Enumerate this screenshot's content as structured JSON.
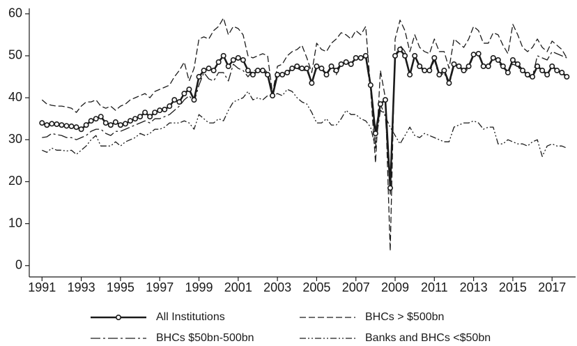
{
  "chart_data": {
    "type": "line",
    "x": [
      1991,
      1991.25,
      1991.5,
      1991.75,
      1992,
      1992.25,
      1992.5,
      1992.75,
      1993,
      1993.25,
      1993.5,
      1993.75,
      1994,
      1994.25,
      1994.5,
      1994.75,
      1995,
      1995.25,
      1995.5,
      1995.75,
      1996,
      1996.25,
      1996.5,
      1996.75,
      1997,
      1997.25,
      1997.5,
      1997.75,
      1998,
      1998.25,
      1998.5,
      1998.75,
      1999,
      1999.25,
      1999.5,
      1999.75,
      2000,
      2000.25,
      2000.5,
      2000.75,
      2001,
      2001.25,
      2001.5,
      2001.75,
      2002,
      2002.25,
      2002.5,
      2002.75,
      2003,
      2003.25,
      2003.5,
      2003.75,
      2004,
      2004.25,
      2004.5,
      2004.75,
      2005,
      2005.25,
      2005.5,
      2005.75,
      2006,
      2006.25,
      2006.5,
      2006.75,
      2007,
      2007.25,
      2007.5,
      2007.75,
      2008,
      2008.25,
      2008.5,
      2008.75,
      2009,
      2009.25,
      2009.5,
      2009.75,
      2010,
      2010.25,
      2010.5,
      2010.75,
      2011,
      2011.25,
      2011.5,
      2011.75,
      2012,
      2012.25,
      2012.5,
      2012.75,
      2013,
      2013.25,
      2013.5,
      2013.75,
      2014,
      2014.25,
      2014.5,
      2014.75,
      2015,
      2015.25,
      2015.5,
      2015.75,
      2016,
      2016.25,
      2016.5,
      2016.75,
      2017,
      2017.25,
      2017.5,
      2017.75
    ],
    "series": [
      {
        "name": "All Institutions",
        "color": "#1a1a1a",
        "dash": "solid",
        "width": 2.6,
        "markers": true,
        "values": [
          34,
          33.5,
          33.8,
          33.7,
          33.5,
          33.3,
          33.2,
          33,
          32.5,
          33.5,
          34.5,
          35,
          35.5,
          34,
          33.5,
          34.2,
          33.5,
          33.8,
          34.5,
          35,
          35.5,
          36.5,
          35.5,
          36.5,
          37,
          37.2,
          38,
          39.5,
          39,
          41,
          42,
          39.5,
          45,
          46.5,
          47,
          46.5,
          48.5,
          50,
          47.5,
          49,
          49.5,
          49,
          46.5,
          45.5,
          46.5,
          46.5,
          45.5,
          40.5,
          45.5,
          45.5,
          46,
          47,
          47.5,
          47,
          47,
          43.5,
          47.5,
          47,
          45.5,
          47.5,
          46.5,
          48,
          48.5,
          48,
          49.5,
          49.5,
          50,
          43,
          31.5,
          38.5,
          39.5,
          18.5,
          50,
          51.5,
          50,
          45.5,
          50,
          47.5,
          46.5,
          46.5,
          49.5,
          45.5,
          46.5,
          43.5,
          48,
          47.5,
          46.5,
          47.5,
          50.3,
          50.5,
          47.5,
          47.5,
          49.5,
          49,
          47.5,
          46,
          49,
          48,
          46.5,
          45.5,
          45,
          47.5,
          46.5,
          45.5,
          47.5,
          46.5,
          46,
          45
        ]
      },
      {
        "name": "BHCs > $500bn",
        "color": "#1a1a1a",
        "dash": "dashed",
        "width": 1.3,
        "markers": false,
        "values": [
          39.5,
          38.5,
          38.2,
          38,
          38,
          37.8,
          37.5,
          36.5,
          38,
          39,
          39,
          39.5,
          38,
          37.5,
          38,
          37,
          38,
          38.5,
          39.5,
          40,
          40.5,
          41,
          40,
          41.5,
          42,
          42.5,
          43,
          45,
          46.5,
          48.5,
          44,
          47,
          54,
          54.5,
          54,
          56,
          57,
          59,
          55,
          57,
          56.5,
          55,
          50,
          49.5,
          50,
          50.5,
          50,
          41,
          47.5,
          48,
          50,
          51,
          51.5,
          52.5,
          49.5,
          46,
          53,
          51.5,
          51,
          53,
          54,
          55.5,
          55,
          54,
          56,
          55,
          57,
          42,
          24.5,
          46.5,
          40,
          3.5,
          54,
          58.5,
          56,
          51,
          55,
          52,
          51,
          50.5,
          54,
          51,
          51,
          47,
          54,
          53,
          52,
          54,
          57,
          56,
          53,
          53,
          55.5,
          55,
          52.5,
          50.5,
          57.5,
          55,
          52,
          51,
          52,
          54,
          52,
          51,
          53.5,
          52.5,
          51.5,
          49.5
        ]
      },
      {
        "name": "BHCs $50bn-500bn",
        "color": "#1a1a1a",
        "dash": "dashdot",
        "width": 1.3,
        "markers": false,
        "values": [
          30.5,
          30.7,
          31.5,
          31.2,
          31,
          30.5,
          30.5,
          30,
          30.5,
          31,
          32,
          32.5,
          32.5,
          31.5,
          31,
          32,
          32,
          32.5,
          33,
          33.5,
          34,
          34.5,
          34,
          35,
          35,
          35.5,
          36,
          37,
          38,
          39.5,
          40.5,
          39,
          43,
          46,
          44.5,
          44,
          46,
          46,
          44,
          48,
          47,
          46.5,
          45,
          46.5,
          46.5,
          47,
          46,
          41,
          45.5,
          46,
          45.5,
          47,
          47,
          46.5,
          46.5,
          43.5,
          47,
          46.5,
          46,
          47,
          45.5,
          48,
          48.5,
          47.5,
          49.5,
          49.5,
          49.5,
          42,
          29,
          37,
          36,
          17,
          50,
          52.5,
          51,
          45,
          50,
          47,
          46.5,
          46,
          49,
          45,
          46,
          43,
          47.5,
          47.5,
          46,
          47,
          50,
          50.5,
          47.5,
          47,
          49.5,
          48.5,
          47,
          46.5,
          48,
          47.5,
          46,
          45,
          45,
          50,
          49.5,
          49,
          51,
          50.5,
          50,
          49.5
        ]
      },
      {
        "name": "Banks and BHCs <$50bn",
        "color": "#1a1a1a",
        "dash": "dashdotdot",
        "width": 1.3,
        "markers": false,
        "values": [
          27.5,
          27,
          28,
          27.5,
          27.5,
          27.3,
          27.5,
          26.5,
          27.5,
          28.5,
          30,
          31,
          28.5,
          28.5,
          28.5,
          29.5,
          28.5,
          29.5,
          30,
          30.5,
          31.5,
          31,
          31.5,
          32.5,
          32.5,
          33,
          34,
          34,
          34,
          34.5,
          34,
          32.5,
          36,
          35,
          34,
          34,
          35,
          34.5,
          37,
          39,
          39.5,
          40,
          41.5,
          39.5,
          40,
          39.5,
          40.5,
          40.5,
          41,
          40.5,
          42,
          41.5,
          40,
          39,
          38.5,
          36.5,
          34,
          34,
          35,
          33.5,
          33.5,
          35,
          37,
          36,
          36,
          35,
          34.5,
          33,
          28,
          38.5,
          35.5,
          33,
          31,
          29,
          31,
          33,
          31,
          30.5,
          31.5,
          31,
          30.5,
          30,
          29.5,
          29.5,
          33,
          33.5,
          34,
          34,
          34.5,
          34,
          32.5,
          33,
          33,
          29,
          29,
          30,
          29.5,
          29,
          29,
          28.5,
          29.5,
          30,
          26,
          28.5,
          29,
          28.5,
          28.5,
          28
        ]
      }
    ],
    "xlim": [
      1990.35,
      2018.2
    ],
    "xticks": [
      1991,
      1993,
      1995,
      1997,
      1999,
      2001,
      2003,
      2005,
      2007,
      2009,
      2011,
      2013,
      2015,
      2017
    ],
    "ylim": [
      -2.7,
      61.3
    ],
    "yticks": [
      0,
      10,
      20,
      30,
      40,
      50,
      60
    ]
  }
}
